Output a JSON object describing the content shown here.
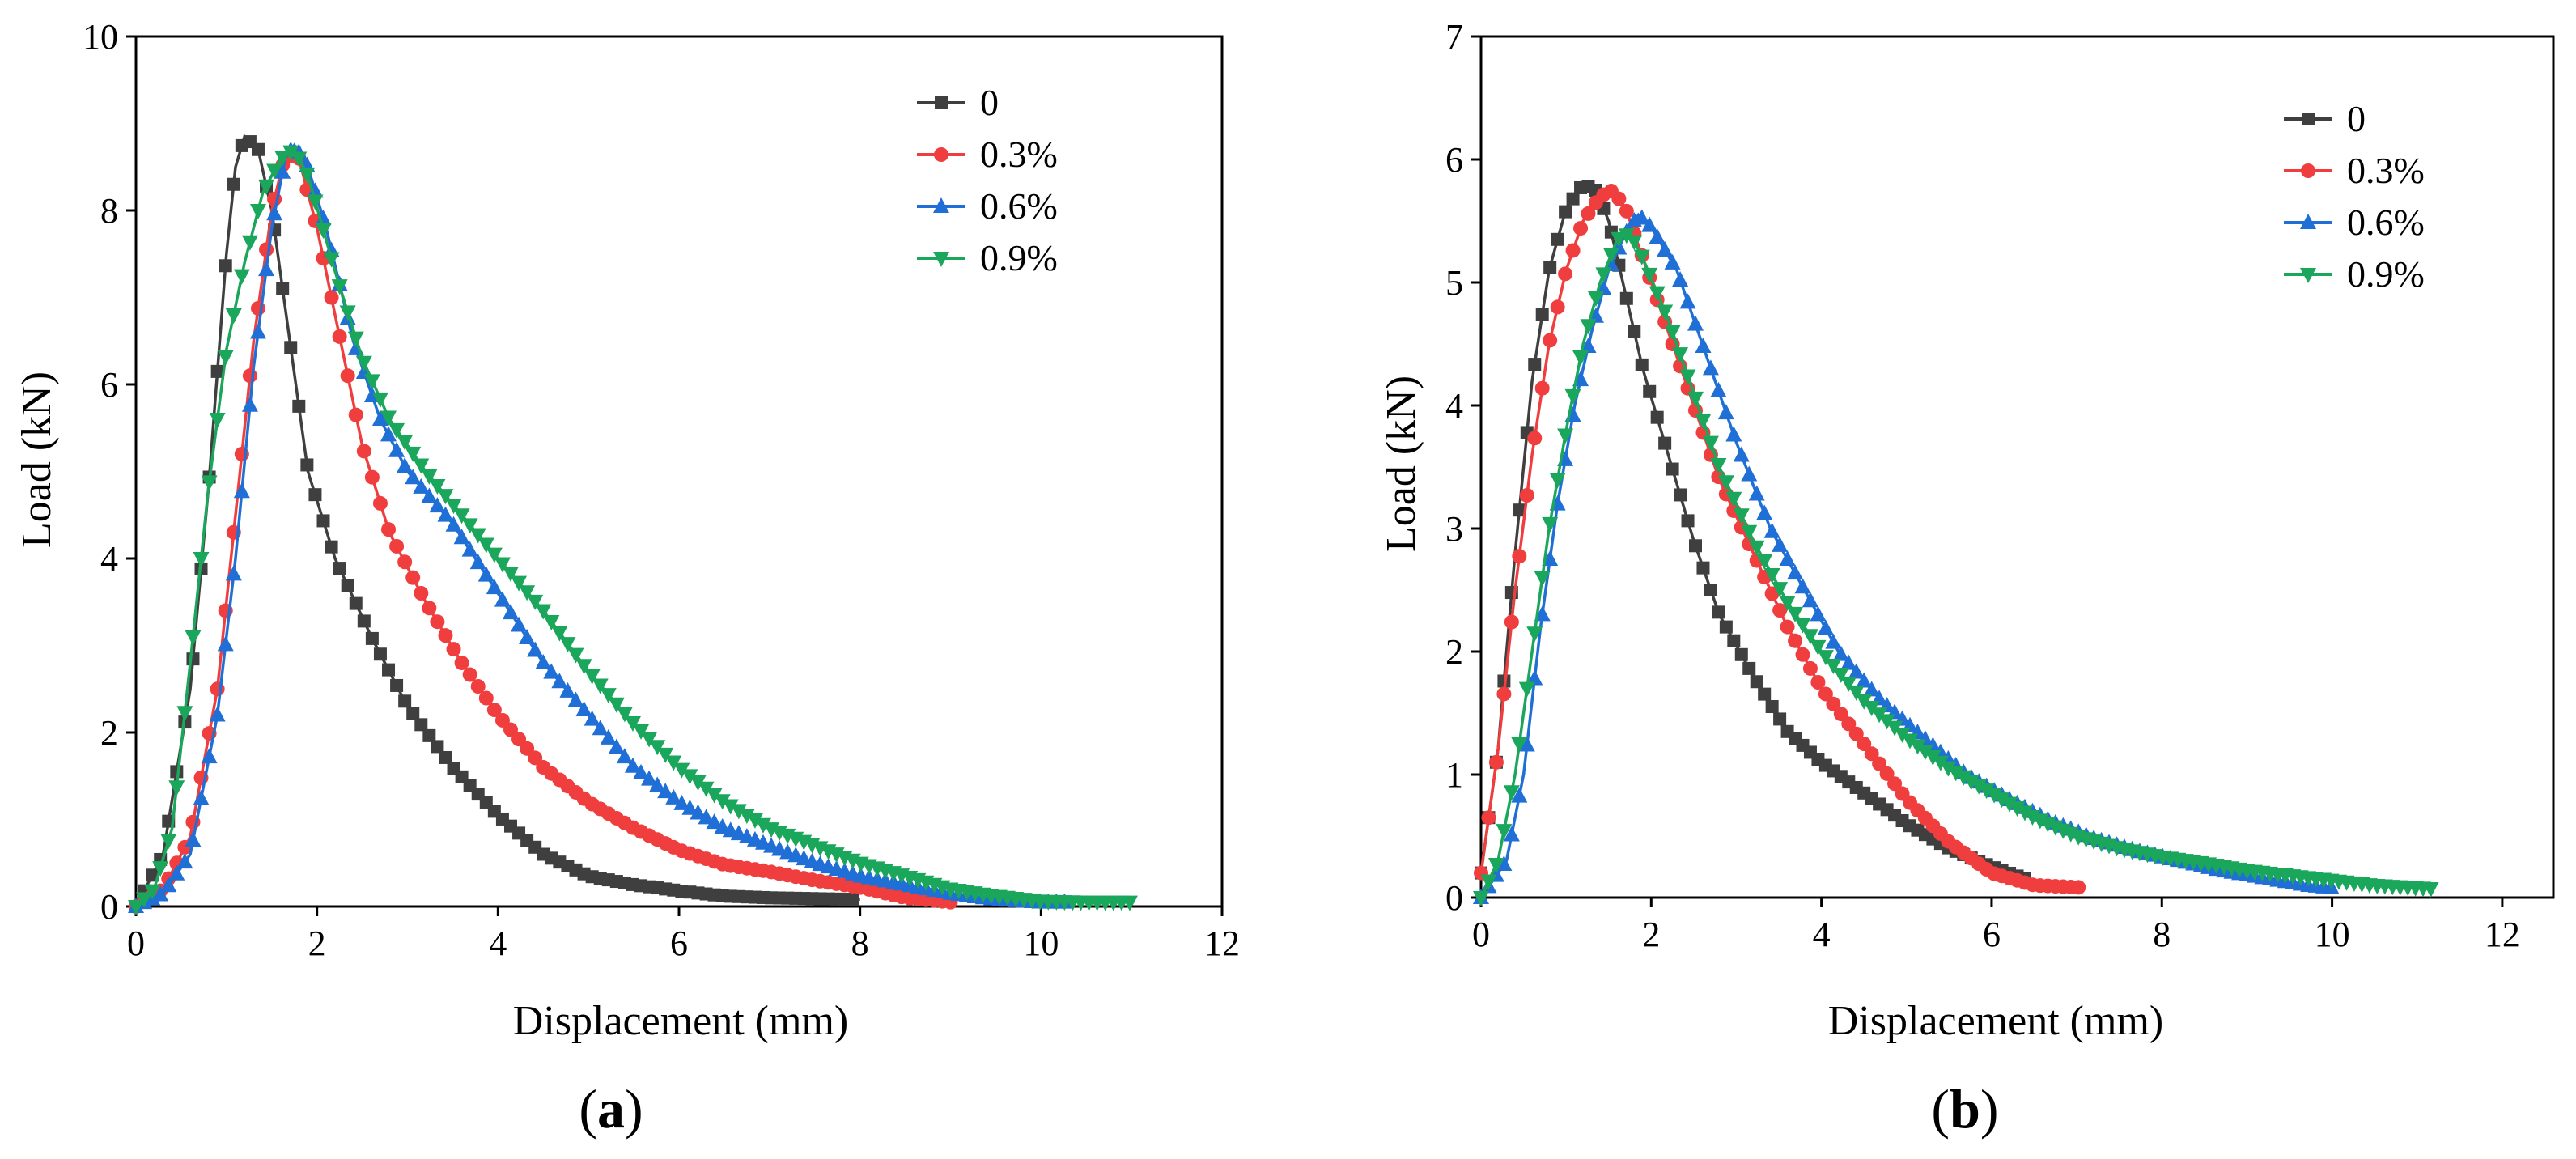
{
  "panels": [
    {
      "label": "a",
      "chart_data": {
        "type": "line",
        "xlabel": "Displacement (mm)",
        "ylabel": "Load (kN)",
        "xlim": [
          0,
          12
        ],
        "ylim": [
          0,
          10
        ],
        "xticks": [
          0,
          2,
          4,
          6,
          8,
          10,
          12
        ],
        "yticks": [
          0,
          2,
          4,
          6,
          8,
          10
        ],
        "legend_position": "top-right",
        "grid": false,
        "series": [
          {
            "name": "0",
            "color": "#3f3f3f",
            "marker": "square",
            "points": [
              [
                0,
                0
              ],
              [
                0.3,
                0.6
              ],
              [
                0.6,
                2.5
              ],
              [
                0.8,
                4.8
              ],
              [
                1.0,
                7.5
              ],
              [
                1.1,
                8.5
              ],
              [
                1.2,
                8.85
              ],
              [
                1.35,
                8.7
              ],
              [
                1.5,
                8.0
              ],
              [
                1.7,
                6.5
              ],
              [
                1.9,
                5.0
              ],
              [
                2.2,
                4.0
              ],
              [
                2.6,
                3.1
              ],
              [
                3.0,
                2.3
              ],
              [
                3.5,
                1.6
              ],
              [
                4.0,
                1.05
              ],
              [
                4.5,
                0.6
              ],
              [
                5.0,
                0.35
              ],
              [
                5.5,
                0.25
              ],
              [
                6.0,
                0.18
              ],
              [
                6.5,
                0.12
              ],
              [
                7.0,
                0.1
              ],
              [
                7.5,
                0.09
              ],
              [
                8.0,
                0.08
              ]
            ]
          },
          {
            "name": "0.3%",
            "color": "#f03d3d",
            "marker": "circle",
            "points": [
              [
                0,
                0
              ],
              [
                0.3,
                0.2
              ],
              [
                0.6,
                0.8
              ],
              [
                0.9,
                2.5
              ],
              [
                1.1,
                4.5
              ],
              [
                1.3,
                6.5
              ],
              [
                1.5,
                8.0
              ],
              [
                1.65,
                8.65
              ],
              [
                1.8,
                8.6
              ],
              [
                2.0,
                7.8
              ],
              [
                2.2,
                6.8
              ],
              [
                2.5,
                5.3
              ],
              [
                2.8,
                4.3
              ],
              [
                3.2,
                3.5
              ],
              [
                3.6,
                2.8
              ],
              [
                4.0,
                2.2
              ],
              [
                4.5,
                1.6
              ],
              [
                5.0,
                1.2
              ],
              [
                5.5,
                0.9
              ],
              [
                6.0,
                0.65
              ],
              [
                6.5,
                0.48
              ],
              [
                7.0,
                0.4
              ],
              [
                7.5,
                0.3
              ],
              [
                8.0,
                0.22
              ],
              [
                8.5,
                0.1
              ],
              [
                9.0,
                0.05
              ]
            ]
          },
          {
            "name": "0.6%",
            "color": "#1f6fd6",
            "marker": "triangle-up",
            "points": [
              [
                0,
                0
              ],
              [
                0.3,
                0.15
              ],
              [
                0.6,
                0.6
              ],
              [
                0.9,
                2.2
              ],
              [
                1.1,
                4.0
              ],
              [
                1.3,
                6.2
              ],
              [
                1.5,
                7.8
              ],
              [
                1.65,
                8.6
              ],
              [
                1.75,
                8.75
              ],
              [
                1.9,
                8.5
              ],
              [
                2.1,
                7.8
              ],
              [
                2.4,
                6.5
              ],
              [
                2.7,
                5.6
              ],
              [
                3.0,
                5.0
              ],
              [
                3.5,
                4.4
              ],
              [
                4.0,
                3.6
              ],
              [
                4.5,
                2.8
              ],
              [
                5.0,
                2.2
              ],
              [
                5.5,
                1.6
              ],
              [
                6.0,
                1.2
              ],
              [
                6.5,
                0.9
              ],
              [
                7.0,
                0.7
              ],
              [
                7.5,
                0.5
              ],
              [
                8.0,
                0.35
              ],
              [
                8.5,
                0.25
              ],
              [
                9.0,
                0.15
              ],
              [
                9.5,
                0.08
              ],
              [
                10.0,
                0.05
              ],
              [
                10.3,
                0.05
              ]
            ]
          },
          {
            "name": "0.9%",
            "color": "#1aa65b",
            "marker": "triangle-down",
            "points": [
              [
                0,
                0
              ],
              [
                0.2,
                0.2
              ],
              [
                0.4,
                0.9
              ],
              [
                0.6,
                2.8
              ],
              [
                0.8,
                4.8
              ],
              [
                1.0,
                6.4
              ],
              [
                1.2,
                7.4
              ],
              [
                1.4,
                8.2
              ],
              [
                1.6,
                8.6
              ],
              [
                1.75,
                8.7
              ],
              [
                1.9,
                8.4
              ],
              [
                2.2,
                7.3
              ],
              [
                2.5,
                6.3
              ],
              [
                2.8,
                5.6
              ],
              [
                3.2,
                5.0
              ],
              [
                3.6,
                4.5
              ],
              [
                4.0,
                4.0
              ],
              [
                4.5,
                3.4
              ],
              [
                5.0,
                2.7
              ],
              [
                5.5,
                2.1
              ],
              [
                6.0,
                1.6
              ],
              [
                6.5,
                1.2
              ],
              [
                7.0,
                0.9
              ],
              [
                7.5,
                0.7
              ],
              [
                8.0,
                0.5
              ],
              [
                8.5,
                0.35
              ],
              [
                9.0,
                0.2
              ],
              [
                9.5,
                0.12
              ],
              [
                10.0,
                0.06
              ],
              [
                10.5,
                0.05
              ],
              [
                11.0,
                0.05
              ]
            ]
          }
        ]
      }
    },
    {
      "label": "b",
      "chart_data": {
        "type": "line",
        "xlabel": "Displacement (mm)",
        "ylabel": "Load (kN)",
        "xlim": [
          0,
          12.6
        ],
        "ylim": [
          0,
          7
        ],
        "xticks": [
          0,
          2,
          4,
          6,
          8,
          10,
          12
        ],
        "yticks": [
          0,
          1,
          2,
          3,
          4,
          5,
          6,
          7
        ],
        "legend_position": "top-right",
        "grid": false,
        "series": [
          {
            "name": "0",
            "color": "#3f3f3f",
            "marker": "square",
            "points": [
              [
                0,
                0.2
              ],
              [
                0.2,
                1.2
              ],
              [
                0.4,
                2.8
              ],
              [
                0.6,
                4.2
              ],
              [
                0.8,
                5.1
              ],
              [
                1.0,
                5.6
              ],
              [
                1.2,
                5.8
              ],
              [
                1.35,
                5.75
              ],
              [
                1.5,
                5.5
              ],
              [
                1.7,
                4.9
              ],
              [
                1.9,
                4.3
              ],
              [
                2.2,
                3.6
              ],
              [
                2.5,
                2.9
              ],
              [
                2.8,
                2.3
              ],
              [
                3.2,
                1.8
              ],
              [
                3.6,
                1.35
              ],
              [
                4.0,
                1.1
              ],
              [
                4.5,
                0.85
              ],
              [
                5.0,
                0.6
              ],
              [
                5.5,
                0.4
              ],
              [
                6.0,
                0.25
              ],
              [
                6.4,
                0.15
              ]
            ]
          },
          {
            "name": "0.3%",
            "color": "#f03d3d",
            "marker": "circle",
            "points": [
              [
                0,
                0.2
              ],
              [
                0.2,
                1.2
              ],
              [
                0.4,
                2.5
              ],
              [
                0.6,
                3.6
              ],
              [
                0.8,
                4.5
              ],
              [
                1.0,
                5.1
              ],
              [
                1.2,
                5.5
              ],
              [
                1.4,
                5.7
              ],
              [
                1.55,
                5.75
              ],
              [
                1.7,
                5.6
              ],
              [
                1.9,
                5.2
              ],
              [
                2.2,
                4.6
              ],
              [
                2.5,
                4.0
              ],
              [
                2.8,
                3.4
              ],
              [
                3.2,
                2.8
              ],
              [
                3.6,
                2.2
              ],
              [
                4.0,
                1.7
              ],
              [
                4.5,
                1.25
              ],
              [
                5.0,
                0.8
              ],
              [
                5.5,
                0.45
              ],
              [
                6.0,
                0.2
              ],
              [
                6.5,
                0.1
              ],
              [
                7.1,
                0.08
              ]
            ]
          },
          {
            "name": "0.6%",
            "color": "#1f6fd6",
            "marker": "triangle-up",
            "points": [
              [
                0,
                0
              ],
              [
                0.3,
                0.3
              ],
              [
                0.5,
                1.0
              ],
              [
                0.7,
                2.2
              ],
              [
                0.9,
                3.2
              ],
              [
                1.1,
                4.0
              ],
              [
                1.3,
                4.6
              ],
              [
                1.5,
                5.1
              ],
              [
                1.7,
                5.4
              ],
              [
                1.85,
                5.55
              ],
              [
                2.0,
                5.45
              ],
              [
                2.3,
                5.1
              ],
              [
                2.6,
                4.5
              ],
              [
                3.0,
                3.7
              ],
              [
                3.4,
                3.0
              ],
              [
                3.8,
                2.5
              ],
              [
                4.2,
                2.0
              ],
              [
                4.7,
                1.6
              ],
              [
                5.2,
                1.3
              ],
              [
                5.7,
                1.0
              ],
              [
                6.2,
                0.8
              ],
              [
                6.7,
                0.62
              ],
              [
                7.2,
                0.48
              ],
              [
                7.7,
                0.38
              ],
              [
                8.2,
                0.3
              ],
              [
                8.7,
                0.22
              ],
              [
                9.2,
                0.16
              ],
              [
                9.7,
                0.1
              ],
              [
                10.0,
                0.08
              ]
            ]
          },
          {
            "name": "0.9%",
            "color": "#1aa65b",
            "marker": "triangle-down",
            "points": [
              [
                0,
                0
              ],
              [
                0.2,
                0.3
              ],
              [
                0.4,
                1.0
              ],
              [
                0.6,
                2.0
              ],
              [
                0.8,
                3.0
              ],
              [
                1.0,
                3.8
              ],
              [
                1.2,
                4.5
              ],
              [
                1.4,
                5.0
              ],
              [
                1.6,
                5.35
              ],
              [
                1.75,
                5.4
              ],
              [
                1.9,
                5.2
              ],
              [
                2.2,
                4.7
              ],
              [
                2.5,
                4.1
              ],
              [
                2.8,
                3.5
              ],
              [
                3.2,
                2.9
              ],
              [
                3.6,
                2.4
              ],
              [
                4.0,
                2.0
              ],
              [
                4.5,
                1.6
              ],
              [
                5.0,
                1.3
              ],
              [
                5.5,
                1.05
              ],
              [
                6.0,
                0.85
              ],
              [
                6.5,
                0.65
              ],
              [
                7.0,
                0.5
              ],
              [
                7.5,
                0.4
              ],
              [
                8.0,
                0.33
              ],
              [
                8.5,
                0.28
              ],
              [
                9.0,
                0.22
              ],
              [
                9.5,
                0.18
              ],
              [
                10.0,
                0.14
              ],
              [
                10.5,
                0.1
              ],
              [
                11.0,
                0.08
              ],
              [
                11.2,
                0.07
              ]
            ]
          }
        ]
      }
    }
  ]
}
